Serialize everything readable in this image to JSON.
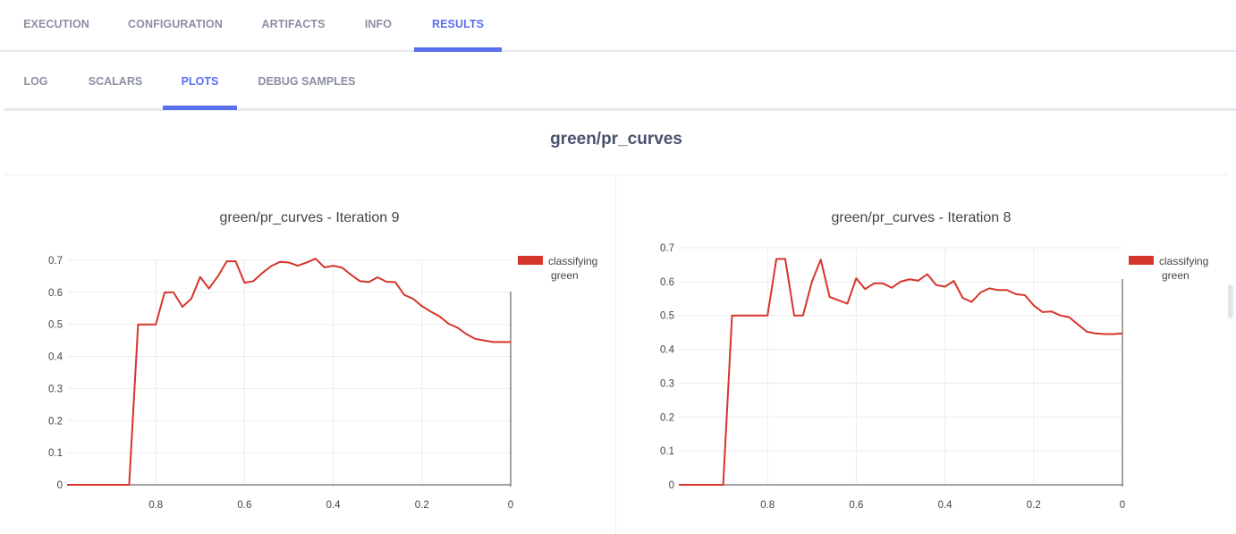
{
  "tabs": [
    {
      "label": "EXECUTION",
      "active": false
    },
    {
      "label": "CONFIGURATION",
      "active": false
    },
    {
      "label": "ARTIFACTS",
      "active": false
    },
    {
      "label": "INFO",
      "active": false
    },
    {
      "label": "RESULTS",
      "active": true
    }
  ],
  "subtabs": [
    {
      "label": "LOG",
      "active": false
    },
    {
      "label": "SCALARS",
      "active": false
    },
    {
      "label": "PLOTS",
      "active": true
    },
    {
      "label": "DEBUG SAMPLES",
      "active": false
    }
  ],
  "group_title": "green/pr_curves",
  "colors": {
    "accent": "#5a6ef0",
    "series": "#d6352b"
  },
  "chart_data": [
    {
      "type": "line",
      "title": "green/pr_curves - Iteration 9",
      "xlabel": "",
      "ylabel": "",
      "xlim": [
        1,
        0
      ],
      "ylim": [
        0,
        0.7
      ],
      "x_reversed": true,
      "xticks": [
        0.8,
        0.6,
        0.4,
        0.2,
        0
      ],
      "yticks": [
        0,
        0.1,
        0.2,
        0.3,
        0.4,
        0.5,
        0.6,
        0.7
      ],
      "grid": true,
      "legend_position": "top-right",
      "series": [
        {
          "name": "classifying green",
          "x": [
            1.0,
            0.88,
            0.86,
            0.84,
            0.8,
            0.78,
            0.76,
            0.74,
            0.72,
            0.7,
            0.68,
            0.66,
            0.64,
            0.62,
            0.6,
            0.58,
            0.56,
            0.54,
            0.52,
            0.5,
            0.48,
            0.46,
            0.44,
            0.42,
            0.4,
            0.38,
            0.36,
            0.34,
            0.32,
            0.3,
            0.28,
            0.26,
            0.24,
            0.22,
            0.2,
            0.18,
            0.16,
            0.14,
            0.12,
            0.1,
            0.08,
            0.06,
            0.04,
            0.02,
            0.0
          ],
          "y": [
            0.0,
            0.0,
            0.0,
            0.5,
            0.5,
            0.6,
            0.6,
            0.555,
            0.58,
            0.648,
            0.612,
            0.65,
            0.697,
            0.697,
            0.63,
            0.635,
            0.66,
            0.682,
            0.695,
            0.693,
            0.683,
            0.693,
            0.705,
            0.678,
            0.683,
            0.677,
            0.655,
            0.635,
            0.632,
            0.647,
            0.633,
            0.632,
            0.592,
            0.58,
            0.557,
            0.54,
            0.525,
            0.502,
            0.49,
            0.47,
            0.455,
            0.45,
            0.445,
            0.445,
            0.445
          ]
        }
      ]
    },
    {
      "type": "line",
      "title": "green/pr_curves - Iteration 8",
      "xlabel": "",
      "ylabel": "",
      "xlim": [
        1,
        0
      ],
      "ylim": [
        0,
        0.7
      ],
      "x_reversed": true,
      "xticks": [
        0.8,
        0.6,
        0.4,
        0.2,
        0
      ],
      "yticks": [
        0,
        0.1,
        0.2,
        0.3,
        0.4,
        0.5,
        0.6,
        0.7
      ],
      "grid": true,
      "legend_position": "top-right",
      "series": [
        {
          "name": "classifying green",
          "x": [
            1.0,
            0.92,
            0.9,
            0.88,
            0.8,
            0.78,
            0.76,
            0.74,
            0.72,
            0.7,
            0.68,
            0.66,
            0.64,
            0.62,
            0.6,
            0.58,
            0.56,
            0.54,
            0.52,
            0.5,
            0.48,
            0.46,
            0.44,
            0.42,
            0.4,
            0.38,
            0.36,
            0.34,
            0.32,
            0.3,
            0.28,
            0.26,
            0.24,
            0.22,
            0.2,
            0.18,
            0.16,
            0.14,
            0.12,
            0.1,
            0.08,
            0.06,
            0.04,
            0.02,
            0.0
          ],
          "y": [
            0.0,
            0.0,
            0.0,
            0.5,
            0.5,
            0.667,
            0.667,
            0.5,
            0.5,
            0.6,
            0.665,
            0.555,
            0.545,
            0.535,
            0.61,
            0.578,
            0.595,
            0.595,
            0.582,
            0.6,
            0.607,
            0.603,
            0.622,
            0.59,
            0.585,
            0.602,
            0.552,
            0.54,
            0.568,
            0.58,
            0.575,
            0.575,
            0.563,
            0.56,
            0.53,
            0.51,
            0.512,
            0.5,
            0.495,
            0.473,
            0.452,
            0.447,
            0.445,
            0.445,
            0.447
          ]
        }
      ]
    }
  ]
}
